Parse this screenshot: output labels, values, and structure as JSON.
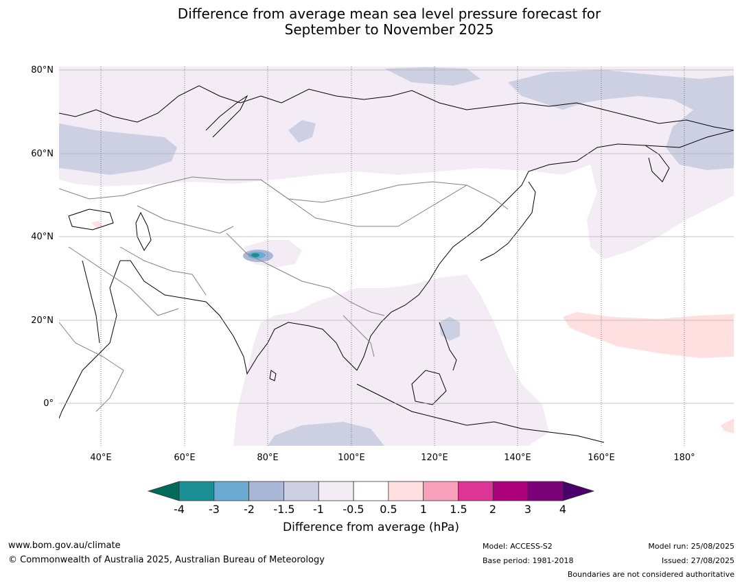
{
  "title": {
    "line1": "Difference from average mean sea level pressure forecast for",
    "line2": "September to November 2025"
  },
  "map": {
    "lat_labels": [
      "80°N",
      "60°N",
      "40°N",
      "20°N",
      "0°"
    ],
    "lon_labels": [
      "40°E",
      "60°E",
      "80°E",
      "100°E",
      "120°E",
      "140°E",
      "160°E",
      "180°"
    ],
    "ocean_color": "#ffffff",
    "anomaly_regions": [
      {
        "name": "arctic-siberia",
        "class": "-1.5 to -1",
        "color": "#cdd0e3"
      },
      {
        "name": "northern-eurasia",
        "class": "-1 to -0.5",
        "color": "#f4ecf5"
      },
      {
        "name": "indian-ocean-maritime",
        "class": "-1 to -0.5",
        "color": "#f4ecf5"
      },
      {
        "name": "north-pacific-positive",
        "class": "0.5 to 1",
        "color": "#ffdfe0"
      },
      {
        "name": "tibet-negative",
        "class": "-4 to -3",
        "color": "#1b8f96"
      }
    ]
  },
  "colorbar": {
    "title": "Difference from average (hPa)",
    "ticks": [
      "-4",
      "-3",
      "-2",
      "-1.5",
      "-1",
      "-0.5",
      "0.5",
      "1",
      "1.5",
      "2",
      "3",
      "4"
    ],
    "colors": [
      "#1b8f96",
      "#6aaad3",
      "#a8b8d6",
      "#cdd0e3",
      "#f4ecf5",
      "#ffffff",
      "#ffdfe0",
      "#f9a0ba",
      "#dd3597",
      "#ae017e",
      "#7a0177"
    ],
    "under_color": "#006b5a",
    "over_color": "#4a006a"
  },
  "footer": {
    "website": "www.bom.gov.au/climate",
    "copyright": "© Commonwealth of Australia 2025, Australian Bureau of Meteorology",
    "model": "Model: ACCESS-S2",
    "base_period": "Base period: 1981-2018",
    "model_run": "Model run: 25/08/2025",
    "issued": "Issued: 27/08/2025",
    "disclaimer": "Boundaries are not considered authoritative"
  }
}
